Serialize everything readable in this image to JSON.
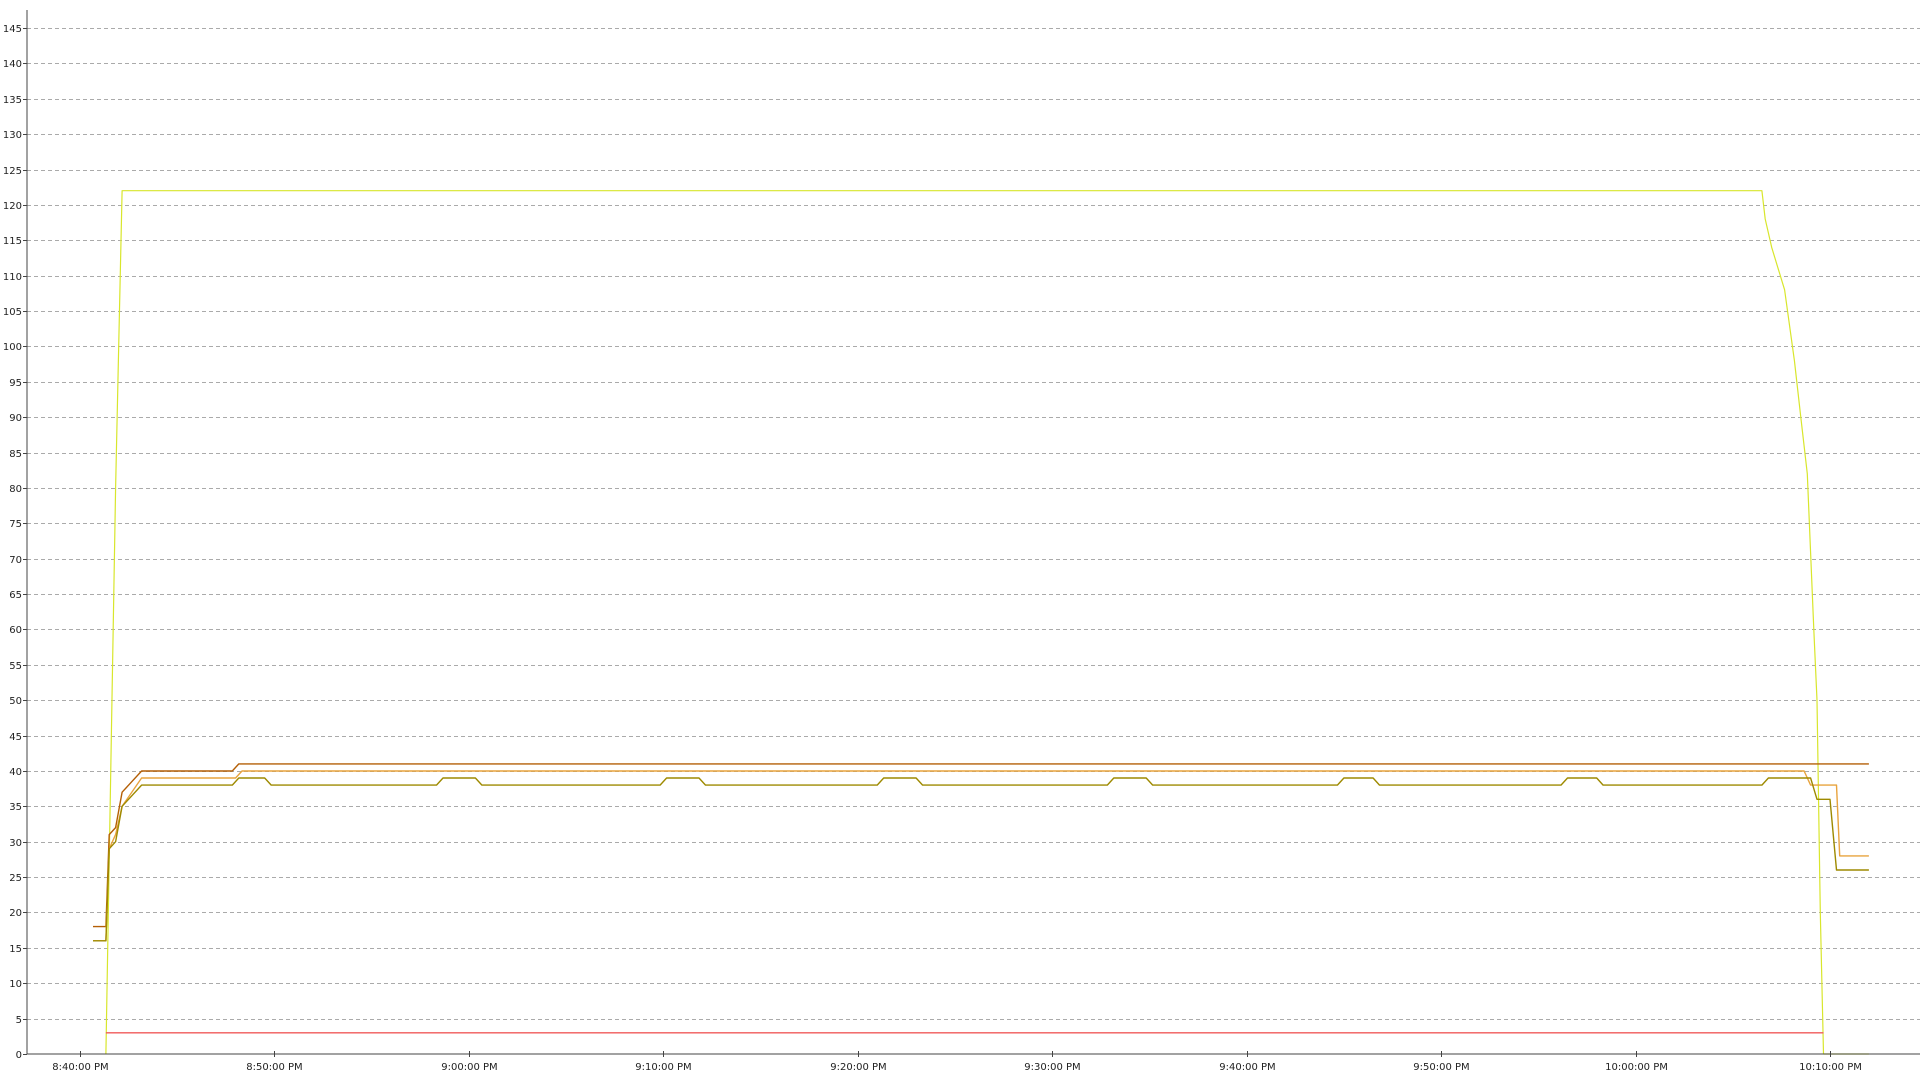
{
  "chart_data": {
    "type": "line",
    "x_ticks": [
      "8:40:00 PM",
      "8:50:00 PM",
      "9:00:00 PM",
      "9:10:00 PM",
      "9:20:00 PM",
      "9:30:00 PM",
      "9:40:00 PM",
      "9:50:00 PM",
      "10:00:00 PM",
      "10:10:00 PM"
    ],
    "y_ticks": [
      0,
      5,
      10,
      15,
      20,
      25,
      30,
      35,
      40,
      45,
      50,
      55,
      60,
      65,
      70,
      75,
      80,
      85,
      90,
      95,
      100,
      105,
      110,
      115,
      120,
      125,
      130,
      135,
      140,
      145
    ],
    "xlim": [
      "8:40:00 PM",
      "10:12:00 PM"
    ],
    "ylim": [
      0,
      147
    ],
    "grid": "horizontal dashed",
    "legend": "none",
    "series": [
      {
        "color": "#d8e62c",
        "x": [
          "8:41:20 PM",
          "8:41:50 PM",
          "8:42:10 PM",
          "8:43:00 PM",
          "8:50:00 PM",
          "9:00:00 PM",
          "9:10:00 PM",
          "9:20:00 PM",
          "9:30:00 PM",
          "9:40:00 PM",
          "9:50:00 PM",
          "10:00:00 PM",
          "10:06:30 PM",
          "10:06:40 PM",
          "10:07:00 PM",
          "10:07:40 PM",
          "10:08:10 PM",
          "10:08:30 PM",
          "10:08:50 PM",
          "10:09:10 PM",
          "10:09:20 PM",
          "10:09:30 PM",
          "10:09:40 PM",
          "10:10:00 PM",
          "10:12:00 PM"
        ],
        "values": [
          0,
          80,
          122,
          122,
          122,
          122,
          122,
          122,
          122,
          122,
          122,
          122,
          122,
          118,
          114,
          108,
          98,
          90,
          82,
          60,
          50,
          20,
          0,
          0,
          0
        ]
      },
      {
        "color": "#b45f06",
        "x": [
          "8:40:40 PM",
          "8:41:20 PM",
          "8:41:30 PM",
          "8:41:50 PM",
          "8:42:10 PM",
          "8:43:10 PM",
          "8:47:50 PM",
          "8:48:10 PM",
          "10:12:00 PM"
        ],
        "values": [
          18,
          18,
          31,
          32,
          37,
          40,
          40,
          41,
          41
        ]
      },
      {
        "color": "#e8a33d",
        "x": [
          "8:40:40 PM",
          "8:41:20 PM",
          "8:41:30 PM",
          "8:41:50 PM",
          "8:42:10 PM",
          "8:43:10 PM",
          "8:48:00 PM",
          "8:48:20 PM",
          "10:06:30 PM",
          "10:07:00 PM",
          "10:08:40 PM",
          "10:09:00 PM",
          "10:10:20 PM",
          "10:10:30 PM",
          "10:12:00 PM"
        ],
        "values": [
          16,
          16,
          29,
          31,
          35,
          39,
          39,
          40,
          40,
          40,
          40,
          38,
          38,
          28,
          28
        ]
      },
      {
        "color": "#9e8a00",
        "x": [
          "8:40:40 PM",
          "8:41:20 PM",
          "8:41:30 PM",
          "8:41:50 PM",
          "8:42:10 PM",
          "8:43:10 PM",
          "8:47:50 PM",
          "8:48:10 PM",
          "8:49:30 PM",
          "8:49:50 PM",
          "8:58:20 PM",
          "8:58:40 PM",
          "9:00:20 PM",
          "9:00:40 PM",
          "9:09:50 PM",
          "9:10:10 PM",
          "9:11:50 PM",
          "9:12:10 PM",
          "9:21:00 PM",
          "9:21:20 PM",
          "9:23:00 PM",
          "9:23:20 PM",
          "9:32:50 PM",
          "9:33:10 PM",
          "9:34:50 PM",
          "9:35:10 PM",
          "9:44:40 PM",
          "9:45:00 PM",
          "9:46:30 PM",
          "9:46:50 PM",
          "9:56:10 PM",
          "9:56:30 PM",
          "9:58:00 PM",
          "9:58:20 PM",
          "10:06:30 PM",
          "10:06:50 PM",
          "10:09:00 PM",
          "10:09:20 PM",
          "10:10:00 PM",
          "10:10:20 PM",
          "10:12:00 PM"
        ],
        "values": [
          16,
          16,
          29,
          30,
          35,
          38,
          38,
          39,
          39,
          38,
          38,
          39,
          39,
          38,
          38,
          39,
          39,
          38,
          38,
          39,
          39,
          38,
          38,
          39,
          39,
          38,
          38,
          39,
          39,
          38,
          38,
          39,
          39,
          38,
          38,
          39,
          39,
          36,
          36,
          26,
          26
        ]
      },
      {
        "color": "#f05a5a",
        "x": [
          "8:41:20 PM",
          "10:09:40 PM"
        ],
        "values": [
          3,
          3
        ]
      }
    ]
  }
}
